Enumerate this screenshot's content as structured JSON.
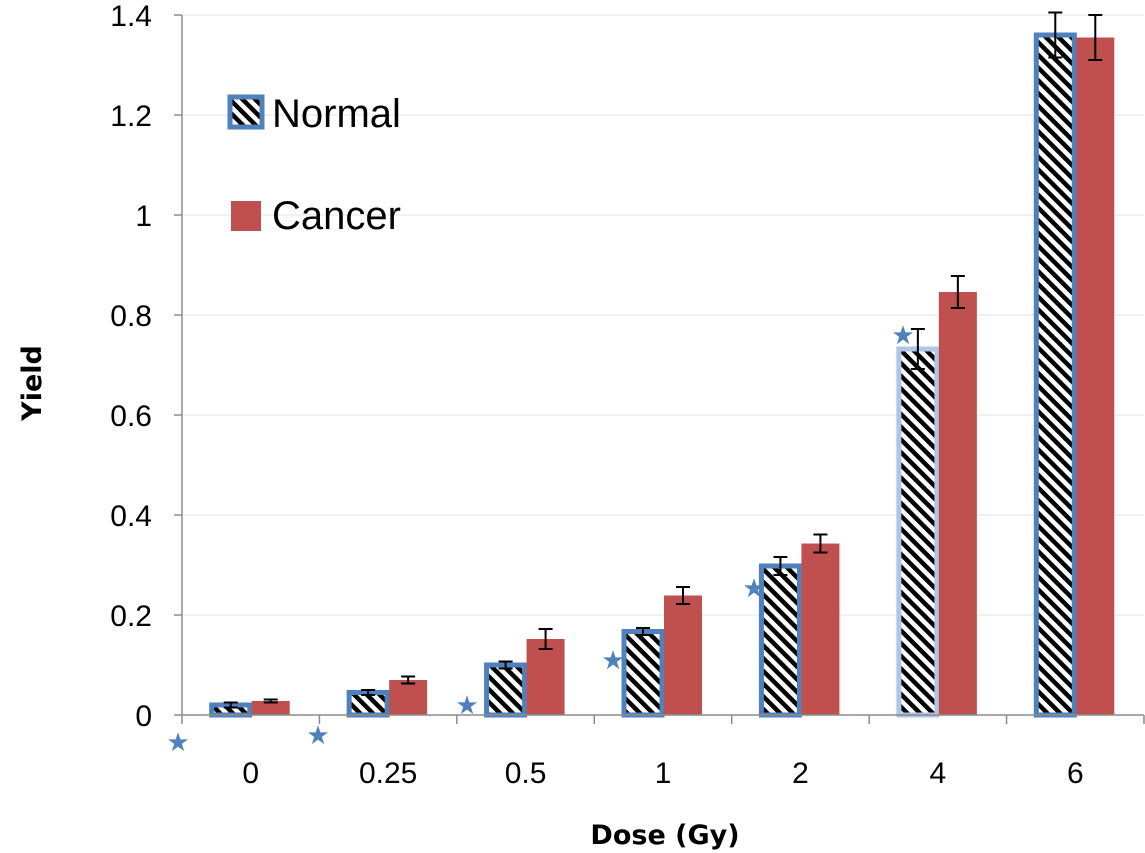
{
  "chart_data": {
    "type": "bar",
    "title": "",
    "xlabel": "Dose (Gy)",
    "ylabel": "Yield",
    "categories": [
      "0",
      "0.25",
      "0.5",
      "1",
      "2",
      "4",
      "6"
    ],
    "ylim": [
      0,
      1.4
    ],
    "yticks": [
      "0",
      "0.2",
      "0.4",
      "0.6",
      "0.8",
      "1",
      "1.2",
      "1.4"
    ],
    "grid": true,
    "legend_position": "top-left",
    "series": [
      {
        "name": "Normal",
        "values": [
          0.02,
          0.045,
          0.1,
          0.167,
          0.298,
          0.732,
          1.36
        ],
        "errors": [
          0.005,
          0.005,
          0.007,
          0.007,
          0.018,
          0.04,
          0.045
        ],
        "fill": "hatched",
        "border_color": "#4F81BD"
      },
      {
        "name": "Cancer",
        "values": [
          0.028,
          0.07,
          0.152,
          0.239,
          0.343,
          0.846,
          1.355
        ],
        "errors": [
          0.003,
          0.007,
          0.02,
          0.017,
          0.018,
          0.032,
          0.045
        ],
        "fill": "solid",
        "color": "#C0504D"
      }
    ],
    "annotations": {
      "marker": "★",
      "color": "#4F81BD",
      "note": "star markers beside bars and below the x-axis"
    }
  }
}
